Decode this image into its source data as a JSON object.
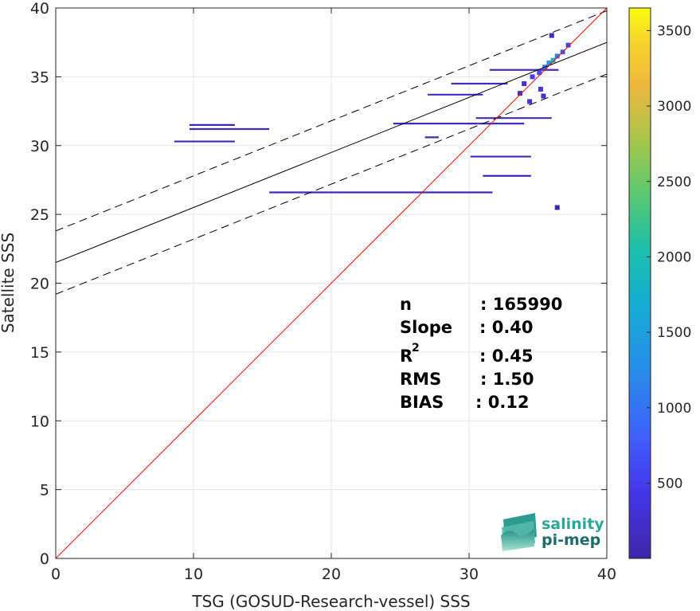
{
  "chart_data": {
    "type": "heatmap",
    "xlabel": "TSG (GOSUD-Research-vessel) SSS",
    "ylabel": "Satellite SSS",
    "xlim": [
      0,
      40
    ],
    "ylim": [
      0,
      40
    ],
    "xticks": [
      "0",
      "10",
      "20",
      "30",
      "40"
    ],
    "yticks": [
      "0",
      "5",
      "10",
      "15",
      "20",
      "25",
      "30",
      "35",
      "40"
    ],
    "grid": true,
    "colorbar": {
      "range": [
        1,
        3650
      ],
      "ticks": [
        "500",
        "1000",
        "1500",
        "2000",
        "2500",
        "3000",
        "3500"
      ],
      "tick_values": [
        500,
        1000,
        1500,
        2000,
        2500,
        3000,
        3500
      ],
      "colormap": "parula"
    },
    "lines": {
      "identity": {
        "slope": 1,
        "intercept": 0,
        "color": "#ff0000"
      },
      "fit": {
        "slope": 0.4,
        "intercept": 21.5,
        "color": "#000000"
      },
      "upper_band": {
        "slope": 0.4,
        "intercept": 23.8,
        "style": "dashed"
      },
      "lower_band": {
        "slope": 0.4,
        "intercept": 19.2,
        "style": "dashed"
      }
    },
    "density_segments": [
      {
        "x": [
          8.6,
          13.0
        ],
        "y": 30.3,
        "count": 120
      },
      {
        "x": [
          9.7,
          15.5
        ],
        "y": 31.2,
        "count": 120
      },
      {
        "x": [
          9.7,
          12.0
        ],
        "y": 31.5,
        "count": 80
      },
      {
        "x": [
          12.0,
          13.0
        ],
        "y": 31.5,
        "count": 80
      },
      {
        "x": [
          15.5,
          31.7
        ],
        "y": 26.6,
        "count": 150
      },
      {
        "x": [
          24.5,
          30.6
        ],
        "y": 31.6,
        "count": 150
      },
      {
        "x": [
          30.6,
          34.0
        ],
        "y": 31.6,
        "count": 200
      },
      {
        "x": [
          27.0,
          31.0
        ],
        "y": 33.7,
        "count": 180
      },
      {
        "x": [
          28.7,
          32.8
        ],
        "y": 34.5,
        "count": 180
      },
      {
        "x": [
          30.1,
          34.5
        ],
        "y": 29.2,
        "count": 100
      },
      {
        "x": [
          31.0,
          34.5
        ],
        "y": 27.8,
        "count": 100
      },
      {
        "x": [
          30.5,
          36.0
        ],
        "y": 32.0,
        "count": 150
      },
      {
        "x": [
          31.5,
          36.5
        ],
        "y": 35.5,
        "count": 200
      },
      {
        "x": [
          26.8,
          27.8
        ],
        "y": 30.6,
        "count": 100
      }
    ],
    "density_points": [
      {
        "x": 34.0,
        "y": 34.5,
        "count": 300
      },
      {
        "x": 34.6,
        "y": 35.0,
        "count": 500
      },
      {
        "x": 35.1,
        "y": 35.3,
        "count": 700
      },
      {
        "x": 35.5,
        "y": 35.7,
        "count": 1000
      },
      {
        "x": 35.8,
        "y": 36.0,
        "count": 1400
      },
      {
        "x": 36.1,
        "y": 36.2,
        "count": 1800
      },
      {
        "x": 36.4,
        "y": 36.5,
        "count": 1200
      },
      {
        "x": 36.8,
        "y": 36.8,
        "count": 800
      },
      {
        "x": 37.2,
        "y": 37.3,
        "count": 600
      },
      {
        "x": 36.0,
        "y": 38.0,
        "count": 200
      },
      {
        "x": 35.4,
        "y": 33.6,
        "count": 250
      },
      {
        "x": 35.2,
        "y": 34.1,
        "count": 400
      },
      {
        "x": 34.4,
        "y": 33.2,
        "count": 300
      },
      {
        "x": 33.7,
        "y": 33.8,
        "count": 250
      },
      {
        "x": 36.4,
        "y": 25.5,
        "count": 50
      }
    ]
  },
  "stats": {
    "n_label": "n",
    "n_value": ": 165990",
    "slope_label": "Slope",
    "slope_value": ": 0.40",
    "r2_label": "R",
    "r2_sup": "2",
    "r2_value": ": 0.45",
    "rms_label": "RMS",
    "rms_value": ": 1.50",
    "bias_label": "BIAS",
    "bias_value": ": 0.12"
  },
  "logo": {
    "line1": "salinity",
    "line2": "pi-mep",
    "color1": "#2aa89a",
    "color2": "#1c6e6a"
  }
}
